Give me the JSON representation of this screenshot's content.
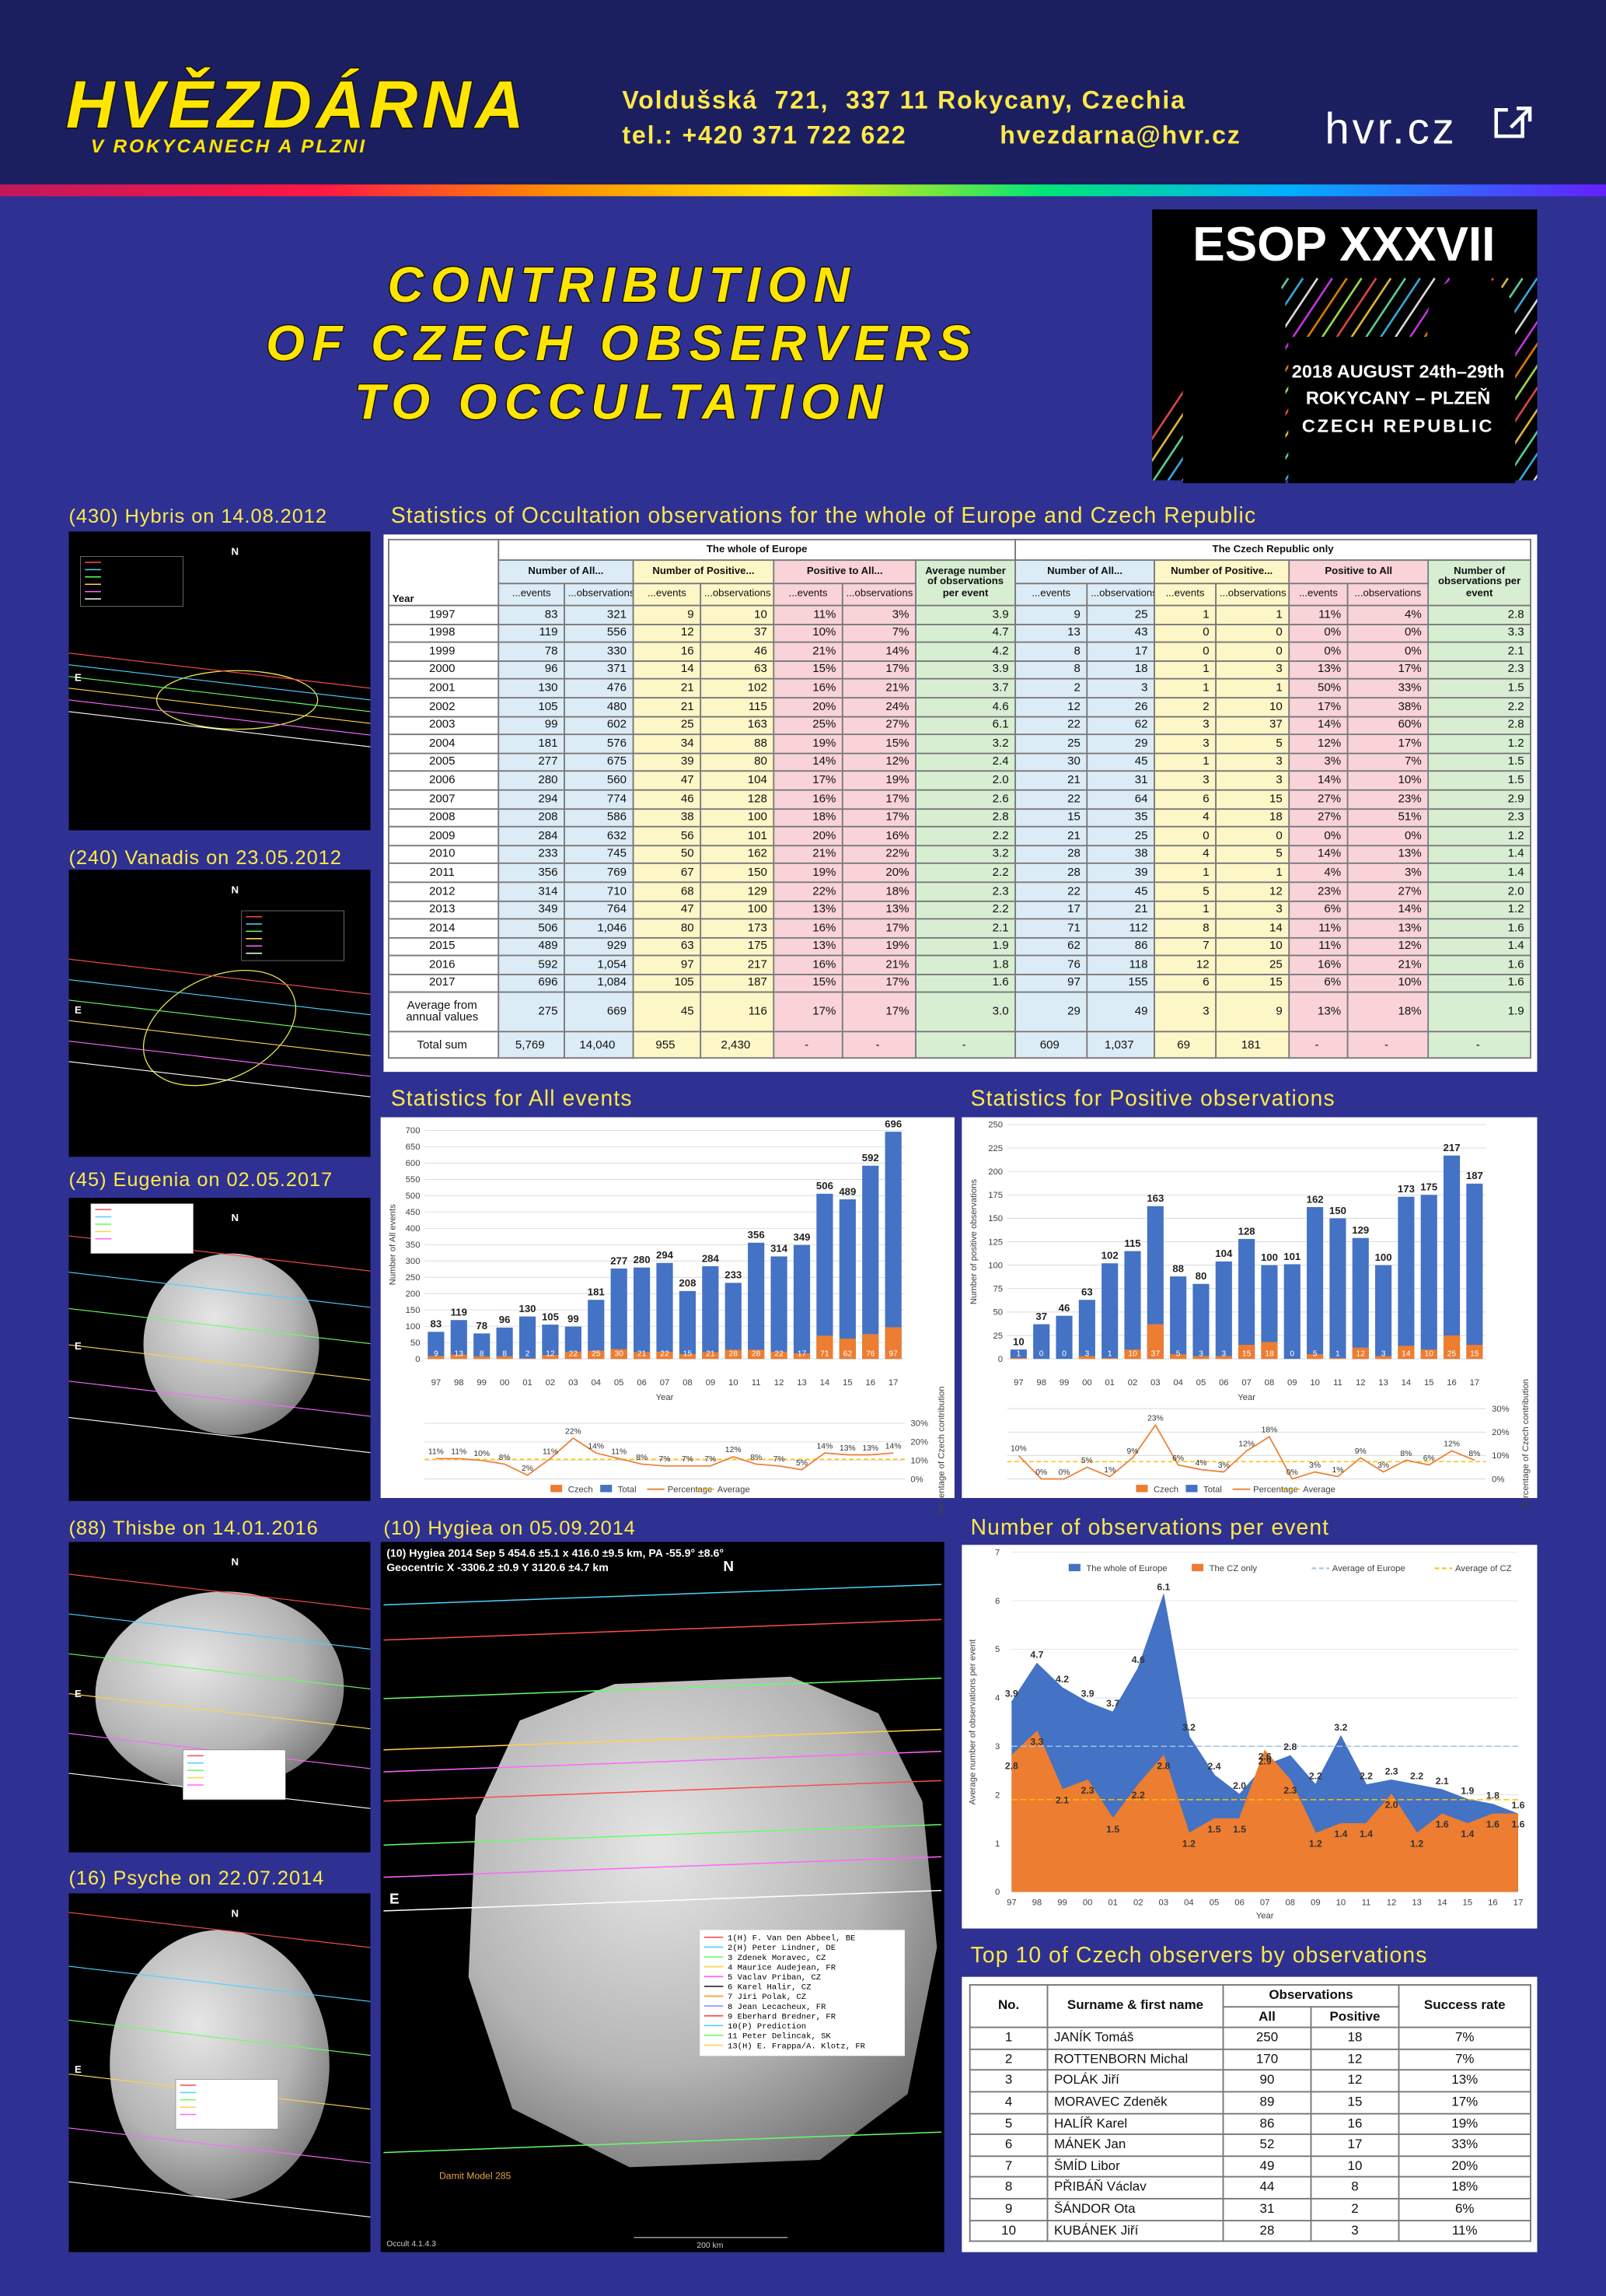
{
  "header": {
    "logo_title": "HVĚZDÁRNA",
    "logo_subtitle": "V ROKYCANECH A PLZNI",
    "address": "Voldušská  721,  337 11 Rokycany, Czechia",
    "phone": "tel.: +420 371 722 622",
    "email": "hvezdarna@hvr.cz",
    "website": "hvr.cz"
  },
  "title": [
    "CONTRIBUTION",
    "OF CZECH OBSERVERS",
    "TO OCCULTATION"
  ],
  "esop": {
    "name": "ESOP XXXVII",
    "dates": "2018 AUGUST 24th–29th",
    "place": "ROKYCANY – PLZEŇ",
    "country": "CZECH REPUBLIC"
  },
  "occultations": [
    {
      "title": "(430) Hybris on 14.08.2012",
      "labels": [
        "N",
        "E"
      ]
    },
    {
      "title": "(240) Vanadis on 23.05.2012",
      "labels": [
        "N",
        "E"
      ]
    },
    {
      "title": "(45) Eugenia on 02.05.2017",
      "labels": [
        "N",
        "E"
      ]
    },
    {
      "title": "(88) Thisbe on 14.01.2016",
      "labels": [
        "N",
        "E"
      ]
    },
    {
      "title": "(16) Psyche on 22.07.2014",
      "labels": [
        "N",
        "E"
      ]
    },
    {
      "title": "(10) Hygiea on 05.09.2014",
      "labels": [
        "N",
        "E"
      ],
      "caption": [
        "(10) Hygiea 2014 Sep 5  454.6 ±5.1 x 416.0 ±9.5 km, PA -55.9° ±8.6°",
        "Geocentric X -3306.2 ±0.9  Y 3120.6 ±4.7 km"
      ],
      "legend": [
        "1(H)  F. Van Den Abbeel, BE",
        "2(H)  Peter Lindner, DE",
        "3     Zdenek Moravec, CZ",
        "4     Maurice Audejean, FR",
        "5     Vaclav Priban, CZ",
        "6     Karel Halir, CZ",
        "7     Jiri Polak, CZ",
        "8     Jean Lecacheux, FR",
        "9     Eberhard Bredner, FR",
        "10(P) Prediction",
        "11    Peter Delincak, SK",
        "13(H) E. Frappa/A. Klotz, FR"
      ],
      "model": "Damit Model 285",
      "software": "Occult 4.1.4.3",
      "scale": "200 km"
    }
  ],
  "table": {
    "title": "Statistics of Occultation observations for the whole of Europe and Czech Republic",
    "regions": [
      "The whole of Europe",
      "The Czech Republic only"
    ],
    "groups": [
      "Number of All...",
      "Number of Positive...",
      "Positive to All...",
      "Average number of observations per event",
      "Number of All...",
      "Number of Positive...",
      "Positive to All",
      "Number of observations per event"
    ],
    "columns": [
      "Year",
      "...events",
      "...observations",
      "...events",
      "...observations",
      "...events",
      "...observations",
      "...events",
      "...observations",
      "...events",
      "...observations",
      "...events",
      "...observations"
    ],
    "rows": [
      [
        "1997",
        "83",
        "321",
        "9",
        "10",
        "11%",
        "3%",
        "3.9",
        "9",
        "25",
        "1",
        "1",
        "11%",
        "4%",
        "2.8"
      ],
      [
        "1998",
        "119",
        "556",
        "12",
        "37",
        "10%",
        "7%",
        "4.7",
        "13",
        "43",
        "0",
        "0",
        "0%",
        "0%",
        "3.3"
      ],
      [
        "1999",
        "78",
        "330",
        "16",
        "46",
        "21%",
        "14%",
        "4.2",
        "8",
        "17",
        "0",
        "0",
        "0%",
        "0%",
        "2.1"
      ],
      [
        "2000",
        "96",
        "371",
        "14",
        "63",
        "15%",
        "17%",
        "3.9",
        "8",
        "18",
        "1",
        "3",
        "13%",
        "17%",
        "2.3"
      ],
      [
        "2001",
        "130",
        "476",
        "21",
        "102",
        "16%",
        "21%",
        "3.7",
        "2",
        "3",
        "1",
        "1",
        "50%",
        "33%",
        "1.5"
      ],
      [
        "2002",
        "105",
        "480",
        "21",
        "115",
        "20%",
        "24%",
        "4.6",
        "12",
        "26",
        "2",
        "10",
        "17%",
        "38%",
        "2.2"
      ],
      [
        "2003",
        "99",
        "602",
        "25",
        "163",
        "25%",
        "27%",
        "6.1",
        "22",
        "62",
        "3",
        "37",
        "14%",
        "60%",
        "2.8"
      ],
      [
        "2004",
        "181",
        "576",
        "34",
        "88",
        "19%",
        "15%",
        "3.2",
        "25",
        "29",
        "3",
        "5",
        "12%",
        "17%",
        "1.2"
      ],
      [
        "2005",
        "277",
        "675",
        "39",
        "80",
        "14%",
        "12%",
        "2.4",
        "30",
        "45",
        "1",
        "3",
        "3%",
        "7%",
        "1.5"
      ],
      [
        "2006",
        "280",
        "560",
        "47",
        "104",
        "17%",
        "19%",
        "2.0",
        "21",
        "31",
        "3",
        "3",
        "14%",
        "10%",
        "1.5"
      ],
      [
        "2007",
        "294",
        "774",
        "46",
        "128",
        "16%",
        "17%",
        "2.6",
        "22",
        "64",
        "6",
        "15",
        "27%",
        "23%",
        "2.9"
      ],
      [
        "2008",
        "208",
        "586",
        "38",
        "100",
        "18%",
        "17%",
        "2.8",
        "15",
        "35",
        "4",
        "18",
        "27%",
        "51%",
        "2.3"
      ],
      [
        "2009",
        "284",
        "632",
        "56",
        "101",
        "20%",
        "16%",
        "2.2",
        "21",
        "25",
        "0",
        "0",
        "0%",
        "0%",
        "1.2"
      ],
      [
        "2010",
        "233",
        "745",
        "50",
        "162",
        "21%",
        "22%",
        "3.2",
        "28",
        "38",
        "4",
        "5",
        "14%",
        "13%",
        "1.4"
      ],
      [
        "2011",
        "356",
        "769",
        "67",
        "150",
        "19%",
        "20%",
        "2.2",
        "28",
        "39",
        "1",
        "1",
        "4%",
        "3%",
        "1.4"
      ],
      [
        "2012",
        "314",
        "710",
        "68",
        "129",
        "22%",
        "18%",
        "2.3",
        "22",
        "45",
        "5",
        "12",
        "23%",
        "27%",
        "2.0"
      ],
      [
        "2013",
        "349",
        "764",
        "47",
        "100",
        "13%",
        "13%",
        "2.2",
        "17",
        "21",
        "1",
        "3",
        "6%",
        "14%",
        "1.2"
      ],
      [
        "2014",
        "506",
        "1,046",
        "80",
        "173",
        "16%",
        "17%",
        "2.1",
        "71",
        "112",
        "8",
        "14",
        "11%",
        "13%",
        "1.6"
      ],
      [
        "2015",
        "489",
        "929",
        "63",
        "175",
        "13%",
        "19%",
        "1.9",
        "62",
        "86",
        "7",
        "10",
        "11%",
        "12%",
        "1.4"
      ],
      [
        "2016",
        "592",
        "1,054",
        "97",
        "217",
        "16%",
        "21%",
        "1.8",
        "76",
        "118",
        "12",
        "25",
        "16%",
        "21%",
        "1.6"
      ],
      [
        "2017",
        "696",
        "1,084",
        "105",
        "187",
        "15%",
        "17%",
        "1.6",
        "97",
        "155",
        "6",
        "15",
        "6%",
        "10%",
        "1.6"
      ],
      [
        "Average from annual values",
        "275",
        "669",
        "45",
        "116",
        "17%",
        "17%",
        "3.0",
        "29",
        "49",
        "3",
        "9",
        "13%",
        "18%",
        "1.9"
      ],
      [
        "Total sum",
        "5,769",
        "14,040",
        "955",
        "2,430",
        "-",
        "-",
        "-",
        "609",
        "1,037",
        "69",
        "181",
        "-",
        "-",
        "-"
      ]
    ]
  },
  "charts": [
    {
      "type": "bar",
      "title": "Statistics for All events",
      "y_label": "Number of All events",
      "x_label": "Year",
      "y2_label": "Percentage of Czech contribution",
      "categories": [
        "97",
        "98",
        "99",
        "00",
        "01",
        "02",
        "03",
        "04",
        "05",
        "06",
        "07",
        "08",
        "09",
        "10",
        "11",
        "12",
        "13",
        "14",
        "15",
        "16",
        "17"
      ],
      "series": [
        {
          "name": "Czech",
          "color": "#ed7d31",
          "values": [
            9,
            13,
            8,
            8,
            2,
            12,
            22,
            25,
            30,
            21,
            22,
            15,
            21,
            28,
            28,
            22,
            17,
            71,
            62,
            76,
            97
          ]
        },
        {
          "name": "Total",
          "color": "#4472c4",
          "values": [
            83,
            119,
            78,
            96,
            130,
            105,
            99,
            181,
            277,
            280,
            294,
            208,
            284,
            233,
            356,
            314,
            349,
            506,
            489,
            592,
            696
          ]
        },
        {
          "name": "Percentage",
          "color": "#ed7d31",
          "axis": "y2",
          "values": [
            11,
            11,
            10,
            8,
            2,
            11,
            22,
            14,
            11,
            8,
            7,
            7,
            7,
            12,
            8,
            7,
            5,
            14,
            13,
            13,
            14
          ],
          "value_labels": [
            "11%",
            "11%",
            "10%",
            "8%",
            "2%",
            "11%",
            "22%",
            "14%",
            "11%",
            "8%",
            "7%",
            "7%",
            "7%",
            "12%",
            "8%",
            "7%",
            "5%",
            "14%",
            "13%",
            "13%",
            "14%"
          ]
        },
        {
          "name": "Average",
          "color": "#ffc000",
          "axis": "y2",
          "value": 10.6
        }
      ],
      "ylim": [
        0,
        700
      ],
      "yticks": [
        0,
        50,
        100,
        150,
        200,
        250,
        300,
        350,
        400,
        450,
        500,
        550,
        600,
        650,
        700
      ],
      "y2lim": [
        0,
        30
      ],
      "y2ticks": [
        {
          "value": 0,
          "label": "0%"
        },
        {
          "value": 10,
          "label": "10%"
        },
        {
          "value": 20,
          "label": "20%"
        },
        {
          "value": 30,
          "label": "30%"
        }
      ]
    },
    {
      "type": "bar",
      "title": "Statistics for Positive observations",
      "y_label": "Number of positive observations",
      "x_label": "Year",
      "y2_label": "Percentage of Czech contribution",
      "categories": [
        "97",
        "98",
        "99",
        "00",
        "01",
        "02",
        "03",
        "04",
        "05",
        "06",
        "07",
        "08",
        "09",
        "10",
        "11",
        "12",
        "13",
        "14",
        "15",
        "16",
        "17"
      ],
      "series": [
        {
          "name": "Czech",
          "color": "#ed7d31",
          "values": [
            1,
            0,
            0,
            3,
            1,
            10,
            37,
            5,
            3,
            3,
            15,
            18,
            0,
            5,
            1,
            12,
            3,
            14,
            10,
            25,
            15
          ]
        },
        {
          "name": "Total",
          "color": "#4472c4",
          "values": [
            10,
            37,
            46,
            63,
            102,
            115,
            163,
            88,
            80,
            104,
            128,
            100,
            101,
            162,
            150,
            129,
            100,
            173,
            175,
            217,
            187
          ]
        },
        {
          "name": "Percentage",
          "color": "#ed7d31",
          "axis": "y2",
          "values": [
            10,
            0,
            0,
            5,
            1,
            9,
            23,
            6,
            4,
            3,
            12,
            18,
            0,
            3,
            1,
            9,
            3,
            8,
            6,
            12,
            8
          ],
          "value_labels": [
            "10%",
            "0%",
            "0%",
            "5%",
            "1%",
            "9%",
            "23%",
            "6%",
            "4%",
            "3%",
            "12%",
            "18%",
            "0%",
            "3%",
            "1%",
            "9%",
            "3%",
            "8%",
            "6%",
            "12%",
            "8%"
          ]
        },
        {
          "name": "Average",
          "color": "#ffc000",
          "axis": "y2",
          "value": 7.4
        }
      ],
      "ylim": [
        0,
        250
      ],
      "yticks": [
        0,
        25,
        50,
        75,
        100,
        125,
        150,
        175,
        200,
        225,
        250
      ],
      "y2lim": [
        0,
        30
      ],
      "y2ticks": [
        {
          "value": 0,
          "label": "0%"
        },
        {
          "value": 10,
          "label": "10%"
        },
        {
          "value": 20,
          "label": "20%"
        },
        {
          "value": 30,
          "label": "30%"
        }
      ]
    },
    {
      "type": "area",
      "title": "Number of observations per event",
      "y_label": "Average number of observations per event",
      "x_label": "Year",
      "categories": [
        "97",
        "98",
        "99",
        "00",
        "01",
        "02",
        "03",
        "04",
        "05",
        "06",
        "07",
        "08",
        "09",
        "10",
        "11",
        "12",
        "13",
        "14",
        "15",
        "16",
        "17"
      ],
      "series": [
        {
          "name": "The whole of Europe",
          "color": "#4472c4",
          "values": [
            3.9,
            4.7,
            4.2,
            3.9,
            3.7,
            4.6,
            6.1,
            3.2,
            2.4,
            2.0,
            2.6,
            2.8,
            2.2,
            3.2,
            2.2,
            2.3,
            2.2,
            2.1,
            1.9,
            1.8,
            1.6
          ],
          "value_labels": [
            "3.9",
            "4.7",
            "4.2",
            "3.9",
            "3.7",
            "4.6",
            "6.1",
            "3.2",
            "2.4",
            "2.0",
            "2.6",
            "2.8",
            "2.2",
            "3.2",
            "2.2",
            "2.3",
            "2.2",
            "2.1",
            "1.9",
            "1.8",
            "1.6"
          ]
        },
        {
          "name": "The CZ only",
          "color": "#ed7d31",
          "values": [
            2.8,
            3.3,
            2.1,
            2.3,
            1.5,
            2.2,
            2.8,
            1.2,
            1.5,
            1.5,
            2.9,
            2.3,
            1.2,
            1.4,
            1.4,
            2.0,
            1.2,
            1.6,
            1.4,
            1.6,
            1.6
          ],
          "value_labels": [
            "2.8",
            "3.3",
            "2.1",
            "2.3",
            "1.5",
            "2.2",
            "2.8",
            "1.2",
            "1.5",
            "1.5",
            "2.9",
            "2.3",
            "1.2",
            "1.4",
            "1.4",
            "2.0",
            "1.2",
            "1.6",
            "1.4",
            "1.6",
            "1.6"
          ]
        },
        {
          "name": "Average of Europe",
          "color": "#9dc3e6",
          "value": 3.0
        },
        {
          "name": "Average of CZ",
          "color": "#ffc000",
          "value": 1.9
        }
      ],
      "ylim": [
        0,
        7
      ],
      "yticks": [
        0,
        1,
        2,
        3,
        4,
        5,
        6,
        7
      ]
    }
  ],
  "top10": {
    "title": "Top 10 of Czech observers by observations",
    "headers": [
      "No.",
      "Surname & first name",
      "Observations",
      "Success rate"
    ],
    "subheaders": [
      "All",
      "Positive"
    ],
    "rows": [
      [
        "1",
        "JANÍK Tomáš",
        "250",
        "18",
        "7%"
      ],
      [
        "2",
        "ROTTENBORN Michal",
        "170",
        "12",
        "7%"
      ],
      [
        "3",
        "POLÁK Jiří",
        "90",
        "12",
        "13%"
      ],
      [
        "4",
        "MORAVEC Zdeněk",
        "89",
        "15",
        "17%"
      ],
      [
        "5",
        "HALÍŘ Karel",
        "86",
        "16",
        "19%"
      ],
      [
        "6",
        "MÁNEK Jan",
        "52",
        "17",
        "33%"
      ],
      [
        "7",
        "ŠMÍD Libor",
        "49",
        "10",
        "20%"
      ],
      [
        "8",
        "PŘIBÁŇ Václav",
        "44",
        "8",
        "18%"
      ],
      [
        "9",
        "ŠÁNDOR Ota",
        "31",
        "2",
        "6%"
      ],
      [
        "10",
        "KUBÁNEK Jiří",
        "28",
        "3",
        "11%"
      ]
    ]
  }
}
